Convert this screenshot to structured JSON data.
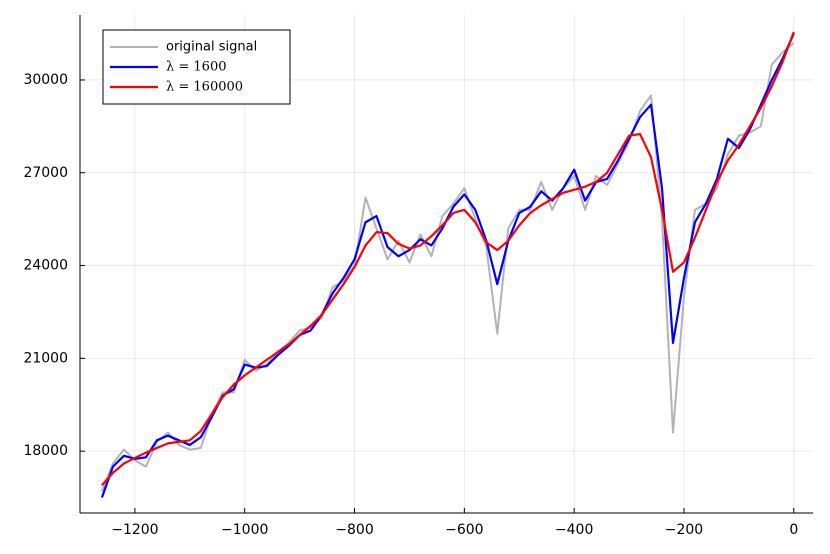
{
  "chart_data": {
    "type": "line",
    "x": [
      -1260,
      -1240,
      -1220,
      -1200,
      -1180,
      -1160,
      -1140,
      -1120,
      -1100,
      -1080,
      -1060,
      -1040,
      -1020,
      -1000,
      -980,
      -960,
      -940,
      -920,
      -900,
      -880,
      -860,
      -840,
      -820,
      -800,
      -780,
      -760,
      -740,
      -720,
      -700,
      -680,
      -660,
      -640,
      -620,
      -600,
      -580,
      -560,
      -540,
      -520,
      -500,
      -480,
      -460,
      -440,
      -420,
      -400,
      -380,
      -360,
      -340,
      -320,
      -300,
      -280,
      -260,
      -240,
      -220,
      -200,
      -180,
      -160,
      -140,
      -120,
      -100,
      -80,
      -60,
      -40,
      -20,
      0
    ],
    "series": [
      {
        "name": "original signal",
        "color": "#b3b3b3",
        "width": 2,
        "values": [
          16700,
          17600,
          18050,
          17700,
          17500,
          18300,
          18600,
          18200,
          18050,
          18100,
          19200,
          19900,
          19900,
          20950,
          20600,
          20800,
          21200,
          21500,
          21900,
          22000,
          22300,
          23300,
          23500,
          24000,
          26200,
          25200,
          24200,
          24800,
          24100,
          25000,
          24300,
          25600,
          26000,
          26500,
          25500,
          24600,
          21800,
          25200,
          25800,
          25800,
          26700,
          25800,
          26500,
          26900,
          25800,
          26900,
          26600,
          27300,
          28000,
          29000,
          29500,
          25500,
          18600,
          23000,
          25800,
          26000,
          26500,
          27600,
          28200,
          28300,
          28500,
          30500,
          30900,
          31200
        ]
      },
      {
        "name": "λ = 1600",
        "color": "#0000ff",
        "width": 2.2,
        "values": [
          16500,
          17500,
          17850,
          17750,
          17800,
          18350,
          18500,
          18350,
          18200,
          18450,
          19100,
          19800,
          20000,
          20800,
          20700,
          20750,
          21100,
          21400,
          21750,
          21900,
          22400,
          23100,
          23600,
          24200,
          25400,
          25600,
          24600,
          24300,
          24500,
          24850,
          24650,
          25200,
          25900,
          26300,
          25800,
          24800,
          23400,
          24800,
          25700,
          25900,
          26400,
          26100,
          26500,
          27100,
          26100,
          26700,
          26800,
          27400,
          28100,
          28800,
          29200,
          26500,
          21500,
          23600,
          25400,
          26000,
          26800,
          28100,
          27800,
          28400,
          29200,
          30000,
          30700,
          31500
        ]
      },
      {
        "name": "λ = 160000",
        "color": "#ff0000",
        "width": 2.2,
        "values": [
          16900,
          17300,
          17600,
          17780,
          17950,
          18100,
          18250,
          18300,
          18350,
          18650,
          19200,
          19750,
          20150,
          20450,
          20700,
          20950,
          21200,
          21450,
          21750,
          22050,
          22400,
          22900,
          23400,
          23950,
          24650,
          25080,
          25050,
          24700,
          24550,
          24650,
          24950,
          25300,
          25700,
          25800,
          25400,
          24750,
          24500,
          24800,
          25300,
          25700,
          25950,
          26150,
          26350,
          26450,
          26550,
          26700,
          27000,
          27600,
          28200,
          28250,
          27500,
          25800,
          23800,
          24100,
          24900,
          25800,
          26700,
          27400,
          27900,
          28500,
          29100,
          29800,
          30600,
          31550
        ]
      }
    ],
    "xlim": [
      -1300,
      35
    ],
    "xticks": [
      {
        "value": -1200,
        "label": "−1200"
      },
      {
        "value": -1000,
        "label": "−1000"
      },
      {
        "value": -800,
        "label": "−800"
      },
      {
        "value": -600,
        "label": "−600"
      },
      {
        "value": -400,
        "label": "−400"
      },
      {
        "value": -200,
        "label": "−200"
      },
      0
    ],
    "ylim": [
      16000,
      32100
    ],
    "yticks": [
      18000,
      21000,
      24000,
      27000,
      30000
    ],
    "grid": true,
    "legend": "top-left"
  }
}
